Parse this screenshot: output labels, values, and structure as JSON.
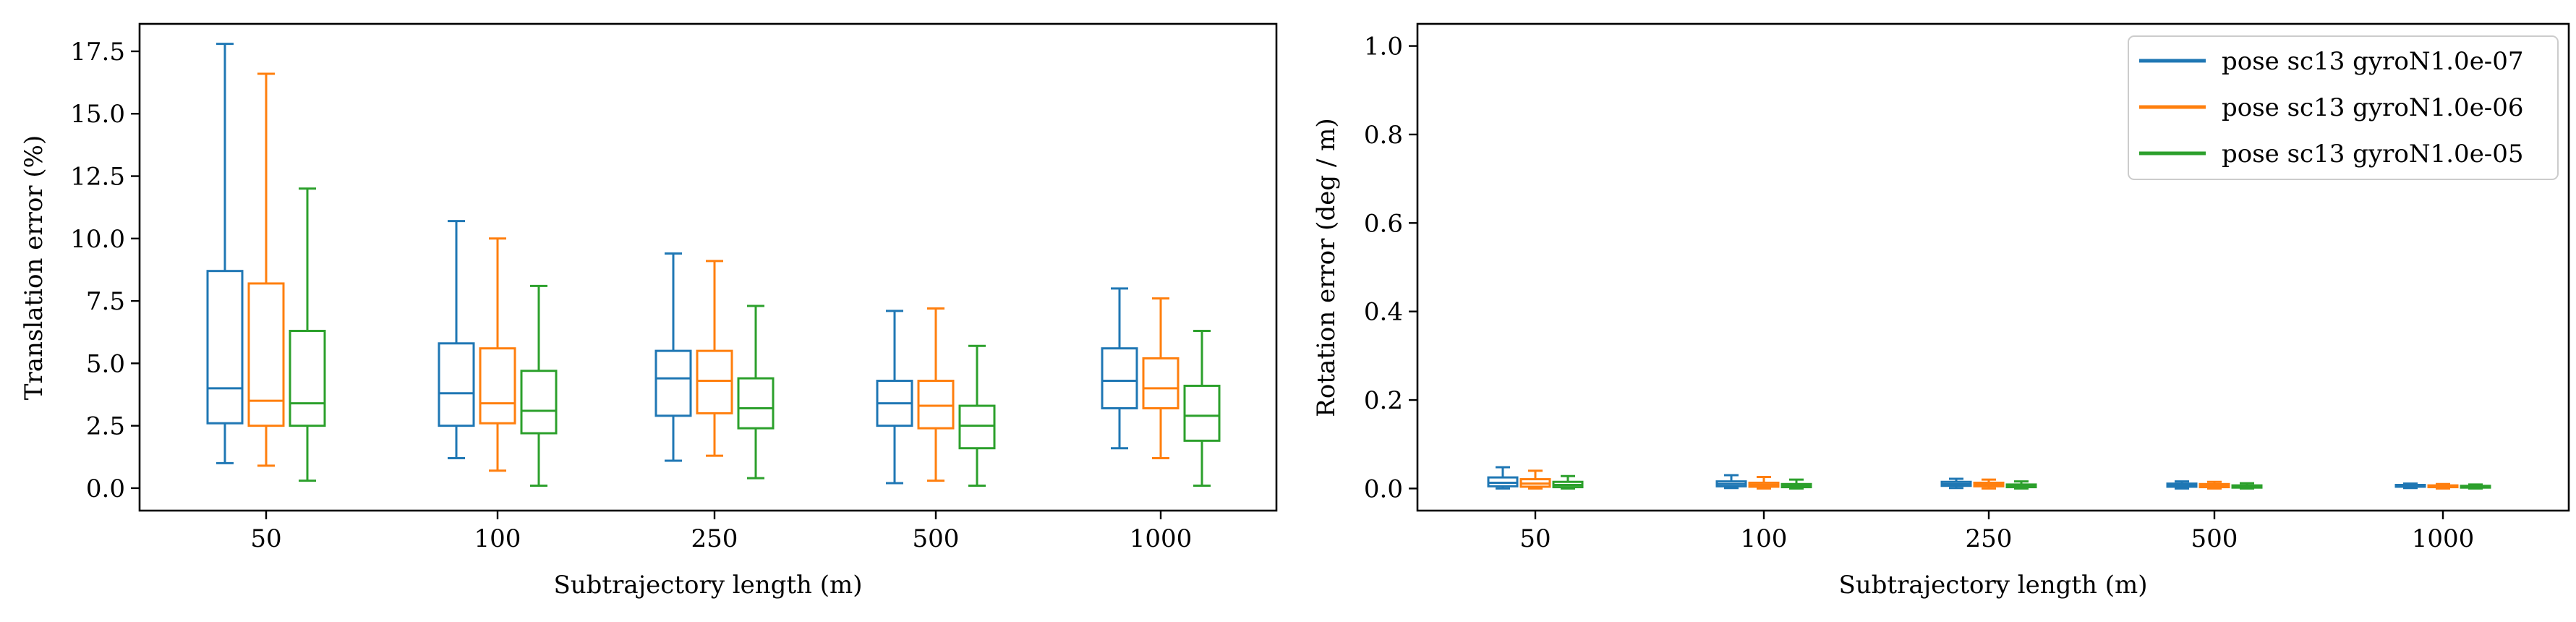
{
  "chart_data": [
    {
      "type": "box",
      "xlabel": "Subtrajectory length (m)",
      "ylabel": "Translation error (%)",
      "ylim": [
        -0.9,
        18.6
      ],
      "yticks": [
        0.0,
        2.5,
        5.0,
        7.5,
        10.0,
        12.5,
        15.0,
        17.5
      ],
      "ytick_labels": [
        "0.0",
        "2.5",
        "5.0",
        "7.5",
        "10.0",
        "12.5",
        "15.0",
        "17.5"
      ],
      "categories": [
        "50",
        "100",
        "250",
        "500",
        "1000"
      ],
      "series": [
        {
          "color": "#1f77b4",
          "boxes": [
            {
              "whislo": 1.0,
              "q1": 2.6,
              "med": 4.0,
              "q3": 8.7,
              "whishi": 17.8
            },
            {
              "whislo": 1.2,
              "q1": 2.5,
              "med": 3.8,
              "q3": 5.8,
              "whishi": 10.7
            },
            {
              "whislo": 1.1,
              "q1": 2.9,
              "med": 4.4,
              "q3": 5.5,
              "whishi": 9.4
            },
            {
              "whislo": 0.2,
              "q1": 2.5,
              "med": 3.4,
              "q3": 4.3,
              "whishi": 7.1
            },
            {
              "whislo": 1.6,
              "q1": 3.2,
              "med": 4.3,
              "q3": 5.6,
              "whishi": 8.0
            }
          ]
        },
        {
          "color": "#ff7f0e",
          "boxes": [
            {
              "whislo": 0.9,
              "q1": 2.5,
              "med": 3.5,
              "q3": 8.2,
              "whishi": 16.6
            },
            {
              "whislo": 0.7,
              "q1": 2.6,
              "med": 3.4,
              "q3": 5.6,
              "whishi": 10.0
            },
            {
              "whislo": 1.3,
              "q1": 3.0,
              "med": 4.3,
              "q3": 5.5,
              "whishi": 9.1
            },
            {
              "whislo": 0.3,
              "q1": 2.4,
              "med": 3.3,
              "q3": 4.3,
              "whishi": 7.2
            },
            {
              "whislo": 1.2,
              "q1": 3.2,
              "med": 4.0,
              "q3": 5.2,
              "whishi": 7.6
            }
          ]
        },
        {
          "color": "#2ca02c",
          "boxes": [
            {
              "whislo": 0.3,
              "q1": 2.5,
              "med": 3.4,
              "q3": 6.3,
              "whishi": 12.0
            },
            {
              "whislo": 0.1,
              "q1": 2.2,
              "med": 3.1,
              "q3": 4.7,
              "whishi": 8.1
            },
            {
              "whislo": 0.4,
              "q1": 2.4,
              "med": 3.2,
              "q3": 4.4,
              "whishi": 7.3
            },
            {
              "whislo": 0.1,
              "q1": 1.6,
              "med": 2.5,
              "q3": 3.3,
              "whishi": 5.7
            },
            {
              "whislo": 0.1,
              "q1": 1.9,
              "med": 2.9,
              "q3": 4.1,
              "whishi": 6.3
            }
          ]
        }
      ]
    },
    {
      "type": "box",
      "xlabel": "Subtrajectory length (m)",
      "ylabel": "Rotation error (deg / m)",
      "ylim": [
        -0.05,
        1.05
      ],
      "yticks": [
        0.0,
        0.2,
        0.4,
        0.6,
        0.8,
        1.0
      ],
      "ytick_labels": [
        "0.0",
        "0.2",
        "0.4",
        "0.6",
        "0.8",
        "1.0"
      ],
      "categories": [
        "50",
        "100",
        "250",
        "500",
        "1000"
      ],
      "legend_position": "top-right",
      "series": [
        {
          "name": "pose sc13 gyroN1.0e-07",
          "color": "#1f77b4",
          "boxes": [
            {
              "whislo": 0.0,
              "q1": 0.005,
              "med": 0.013,
              "q3": 0.025,
              "whishi": 0.048
            },
            {
              "whislo": 0.001,
              "q1": 0.005,
              "med": 0.01,
              "q3": 0.016,
              "whishi": 0.03
            },
            {
              "whislo": 0.001,
              "q1": 0.006,
              "med": 0.01,
              "q3": 0.015,
              "whishi": 0.022
            },
            {
              "whislo": 0.0,
              "q1": 0.004,
              "med": 0.007,
              "q3": 0.011,
              "whishi": 0.016
            },
            {
              "whislo": 0.001,
              "q1": 0.004,
              "med": 0.006,
              "q3": 0.008,
              "whishi": 0.011
            }
          ]
        },
        {
          "name": "pose sc13 gyroN1.0e-06",
          "color": "#ff7f0e",
          "boxes": [
            {
              "whislo": 0.0,
              "q1": 0.004,
              "med": 0.011,
              "q3": 0.021,
              "whishi": 0.04
            },
            {
              "whislo": 0.0,
              "q1": 0.004,
              "med": 0.008,
              "q3": 0.013,
              "whishi": 0.026
            },
            {
              "whislo": 0.0,
              "q1": 0.005,
              "med": 0.009,
              "q3": 0.013,
              "whishi": 0.02
            },
            {
              "whislo": 0.0,
              "q1": 0.003,
              "med": 0.006,
              "q3": 0.01,
              "whishi": 0.015
            },
            {
              "whislo": 0.0,
              "q1": 0.003,
              "med": 0.005,
              "q3": 0.007,
              "whishi": 0.01
            }
          ]
        },
        {
          "name": "pose sc13 gyroN1.0e-05",
          "color": "#2ca02c",
          "boxes": [
            {
              "whislo": 0.0,
              "q1": 0.003,
              "med": 0.008,
              "q3": 0.015,
              "whishi": 0.028
            },
            {
              "whislo": 0.0,
              "q1": 0.003,
              "med": 0.006,
              "q3": 0.01,
              "whishi": 0.02
            },
            {
              "whislo": 0.0,
              "q1": 0.003,
              "med": 0.006,
              "q3": 0.009,
              "whishi": 0.016
            },
            {
              "whislo": 0.0,
              "q1": 0.002,
              "med": 0.004,
              "q3": 0.007,
              "whishi": 0.012
            },
            {
              "whislo": 0.0,
              "q1": 0.002,
              "med": 0.004,
              "q3": 0.006,
              "whishi": 0.009
            }
          ]
        }
      ]
    }
  ]
}
